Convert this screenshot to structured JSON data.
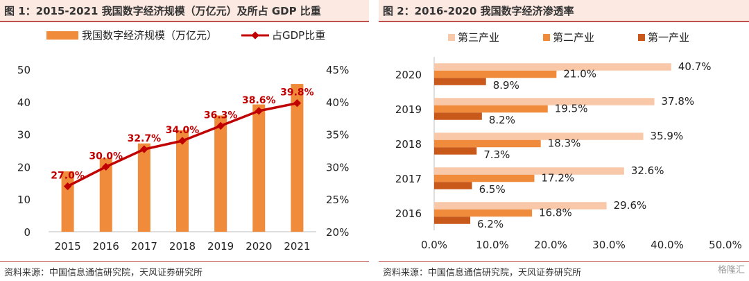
{
  "left": {
    "title": "图 1：2015-2021 我国数字经济规模（万亿元）及所占 GDP 比重",
    "source": "资料来源：中国信息通信研究院，天风证券研究所"
  },
  "right": {
    "title": "图 2：2016-2020 我国数字经济渗透率",
    "source": "资料来源：中国信息通信研究院，天风证券研究所"
  },
  "watermark": "格隆汇",
  "colors": {
    "bar": "#f08b3b",
    "line": "#c00000",
    "tertiary": "#f9c8a8",
    "secondary": "#f08b3b",
    "primary": "#c8591a"
  },
  "chart_data": [
    {
      "type": "bar",
      "categories": [
        "2015",
        "2016",
        "2017",
        "2018",
        "2019",
        "2020",
        "2021"
      ],
      "series": [
        {
          "name": "我国数字经济规模（万亿元）",
          "type": "bar",
          "axis": "left",
          "values": [
            18.6,
            22.6,
            27.2,
            31.3,
            35.8,
            39.2,
            45.5
          ]
        },
        {
          "name": "占GDP比重",
          "type": "line",
          "axis": "right",
          "values": [
            27.0,
            30.0,
            32.7,
            34.0,
            36.3,
            38.6,
            39.8
          ],
          "labels": [
            "27.0%",
            "30.0%",
            "32.7%",
            "34.0%",
            "36.3%",
            "38.6%",
            "39.8%"
          ]
        }
      ],
      "y_left": {
        "ylim": [
          0,
          50
        ],
        "ticks": [
          "0",
          "10",
          "20",
          "30",
          "40",
          "50"
        ]
      },
      "y_right": {
        "ylim": [
          20,
          45
        ],
        "ticks": [
          "20%",
          "25%",
          "30%",
          "35%",
          "40%",
          "45%"
        ]
      },
      "legend_position": "top",
      "grid": false
    },
    {
      "type": "bar",
      "orientation": "horizontal",
      "categories": [
        "2020",
        "2019",
        "2018",
        "2017",
        "2016"
      ],
      "series": [
        {
          "name": "第三产业",
          "values": [
            40.7,
            37.8,
            35.9,
            32.6,
            29.6
          ],
          "labels": [
            "40.7%",
            "37.8%",
            "35.9%",
            "32.6%",
            "29.6%"
          ]
        },
        {
          "name": "第二产业",
          "values": [
            21.0,
            19.5,
            18.3,
            17.2,
            16.8
          ],
          "labels": [
            "21.0%",
            "19.5%",
            "18.3%",
            "17.2%",
            "16.8%"
          ]
        },
        {
          "name": "第一产业",
          "values": [
            8.9,
            8.2,
            7.3,
            6.5,
            6.2
          ],
          "labels": [
            "8.9%",
            "8.2%",
            "7.3%",
            "6.5%",
            "6.2%"
          ]
        }
      ],
      "xlim": [
        0,
        50
      ],
      "x_ticks": [
        "0.0%",
        "10.0%",
        "20.0%",
        "30.0%",
        "40.0%",
        "50.0%"
      ],
      "legend_position": "top",
      "grid": false
    }
  ]
}
